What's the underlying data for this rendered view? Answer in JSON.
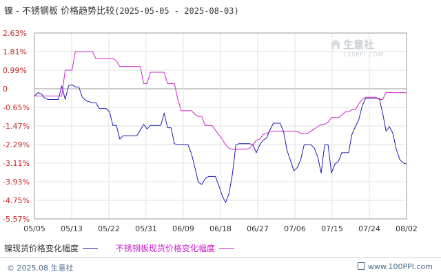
{
  "header": {
    "title": "镍 - 不锈钢板 价格趋势比较",
    "date_range": "(2025-05-05 - 2025-08-03)"
  },
  "watermark": {
    "brand": "生意社",
    "site": "100PPI.COM"
  },
  "legend": [
    {
      "label": "镍现货价格变化幅度",
      "color": "#1a1ab3"
    },
    {
      "label": "不锈钢板现货价格变化幅度",
      "color": "#cc22cc"
    }
  ],
  "footer": {
    "copyright": "© 2025.08 生意社",
    "site": "www.100PPI.com"
  },
  "chart_data": {
    "type": "line",
    "y_ticks": [
      "2.63%",
      "1.81%",
      "0.99%",
      "0",
      "-0.65%",
      "-1.47%",
      "-2.29%",
      "-3.11%",
      "-3.93%",
      "-4.75%",
      "-5.57%"
    ],
    "x_ticks": [
      "05/05",
      "05/13",
      "05/22",
      "05/31",
      "06/09",
      "06/18",
      "06/27",
      "07/06",
      "07/15",
      "07/24",
      "08/02"
    ],
    "ylim": [
      -5.57,
      2.63
    ],
    "grid": true,
    "series": [
      {
        "name": "镍现货价格变化幅度",
        "color": "#1a1ab3",
        "values": [
          -0.15,
          0.0,
          -0.05,
          -0.25,
          -0.3,
          -0.3,
          -0.3,
          -0.3,
          0.3,
          -0.3,
          0.3,
          0.35,
          0.25,
          0.25,
          -0.2,
          -0.35,
          -0.4,
          -0.45,
          -0.45,
          -0.7,
          -0.7,
          -0.7,
          -0.85,
          -1.45,
          -1.45,
          -2.05,
          -1.9,
          -1.9,
          -1.9,
          -1.9,
          -1.9,
          -1.65,
          -1.4,
          -1.6,
          -1.45,
          -1.45,
          -1.45,
          -1.45,
          -0.9,
          -1.55,
          -1.55,
          -2.25,
          -2.3,
          -2.3,
          -2.3,
          -2.3,
          -2.7,
          -3.3,
          -3.95,
          -4.05,
          -3.8,
          -3.7,
          -3.7,
          -3.7,
          -4.1,
          -4.55,
          -4.85,
          -4.45,
          -3.6,
          -2.3,
          -2.25,
          -2.25,
          -2.25,
          -2.25,
          -2.3,
          -2.65,
          -2.3,
          -2.1,
          -2.0,
          -1.65,
          -1.35,
          -1.35,
          -1.35,
          -1.75,
          -2.55,
          -3.0,
          -3.45,
          -3.3,
          -2.95,
          -2.3,
          -2.3,
          -2.3,
          -2.45,
          -2.85,
          -3.55,
          -2.3,
          -2.3,
          -3.55,
          -3.15,
          -3.05,
          -2.65,
          -2.65,
          -2.65,
          -1.85,
          -1.5,
          -1.2,
          -0.6,
          -0.25,
          -0.25,
          -0.25,
          -0.25,
          -0.25,
          -0.9,
          -1.7,
          -1.5,
          -1.8,
          -2.5,
          -2.95,
          -3.1,
          -3.15
        ]
      },
      {
        "name": "不锈钢板现货价格变化幅度",
        "color": "#cc22cc",
        "values": [
          -0.15,
          -0.15,
          -0.15,
          -0.15,
          -0.15,
          -0.15,
          -0.15,
          -0.15,
          -0.15,
          0.99,
          0.99,
          0.99,
          1.81,
          1.81,
          1.81,
          1.81,
          1.81,
          1.81,
          1.5,
          1.5,
          1.5,
          1.5,
          1.5,
          1.5,
          1.4,
          1.15,
          1.15,
          1.15,
          1.15,
          1.15,
          1.15,
          1.15,
          0.4,
          0.4,
          0.9,
          0.9,
          0.9,
          0.9,
          0.9,
          0.4,
          0.4,
          0.4,
          -0.3,
          -0.8,
          -0.8,
          -0.8,
          -0.8,
          -0.95,
          -1.05,
          -1.05,
          -1.45,
          -1.45,
          -1.45,
          -1.65,
          -1.85,
          -2.05,
          -2.3,
          -2.45,
          -2.5,
          -2.5,
          -2.5,
          -2.5,
          -2.5,
          -2.45,
          -2.3,
          -2.1,
          -2.05,
          -1.85,
          -1.8,
          -1.7,
          -1.7,
          -1.7,
          -1.7,
          -1.7,
          -1.7,
          -1.7,
          -1.7,
          -1.7,
          -1.8,
          -1.8,
          -1.8,
          -1.7,
          -1.6,
          -1.5,
          -1.4,
          -1.4,
          -1.3,
          -1.1,
          -1.1,
          -1.1,
          -1.0,
          -0.85,
          -0.85,
          -0.75,
          -0.75,
          -0.5,
          -0.3,
          -0.2,
          -0.2,
          -0.2,
          -0.2,
          -0.3,
          -0.3,
          0.0,
          0.0,
          0.0,
          0.0,
          0.0,
          0.0,
          0.0
        ]
      }
    ]
  }
}
